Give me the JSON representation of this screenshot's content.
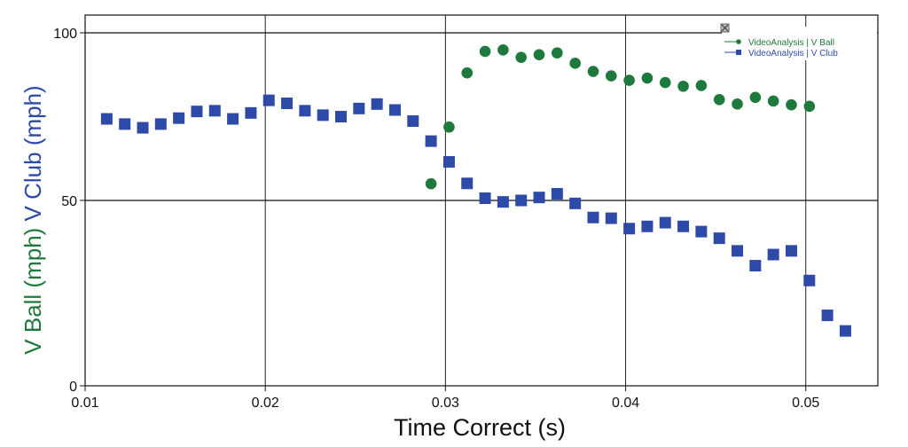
{
  "chart_data": {
    "type": "scatter",
    "xlabel": "Time Correct (s)",
    "ylabel_parts": [
      {
        "text": "V Ball (mph)",
        "color": "#1e7a3c"
      },
      {
        "text": "V Club (mph)",
        "color": "#2e4aa8"
      }
    ],
    "xlim": [
      0.01,
      0.054
    ],
    "ylim": [
      0,
      100
    ],
    "x_ticks": [
      {
        "value": 0.01,
        "label": "0.01"
      },
      {
        "value": 0.02,
        "label": "0.02"
      },
      {
        "value": 0.03,
        "label": "0.03"
      },
      {
        "value": 0.04,
        "label": "0.04"
      },
      {
        "value": 0.05,
        "label": "0.05"
      }
    ],
    "y_ticks": [
      {
        "value": 0,
        "label": "0"
      },
      {
        "value": 50,
        "label": "50"
      },
      {
        "value": 100,
        "label": "100"
      }
    ],
    "grid": true,
    "legend": {
      "placement": "top-right",
      "entries": [
        {
          "label": "VideoAnalysis | V Ball",
          "color": "#1e7a3c",
          "marker": "circle"
        },
        {
          "label": "VideoAnalysis | V Club",
          "color": "#2e4aa8",
          "marker": "square"
        }
      ]
    },
    "series": [
      {
        "name": "VideoAnalysis | V Ball",
        "color": "#1e7a3c",
        "marker": "circle",
        "points": [
          [
            0.0292,
            54.5
          ],
          [
            0.0302,
            69.8
          ],
          [
            0.0312,
            84.4
          ],
          [
            0.0322,
            90.2
          ],
          [
            0.0332,
            90.6
          ],
          [
            0.0342,
            88.6
          ],
          [
            0.0352,
            89.3
          ],
          [
            0.0362,
            89.8
          ],
          [
            0.0372,
            87.0
          ],
          [
            0.0382,
            84.8
          ],
          [
            0.0392,
            83.6
          ],
          [
            0.0402,
            82.4
          ],
          [
            0.0412,
            83.0
          ],
          [
            0.0422,
            81.8
          ],
          [
            0.0432,
            80.8
          ],
          [
            0.0442,
            81.0
          ],
          [
            0.0452,
            77.2
          ],
          [
            0.0462,
            76.0
          ],
          [
            0.0472,
            77.8
          ],
          [
            0.0482,
            76.8
          ],
          [
            0.0492,
            75.8
          ],
          [
            0.0502,
            75.4
          ]
        ]
      },
      {
        "name": "VideoAnalysis | V Club",
        "color": "#2e4aa8",
        "marker": "square",
        "points": [
          [
            0.0112,
            72.0
          ],
          [
            0.0122,
            70.6
          ],
          [
            0.0132,
            69.6
          ],
          [
            0.0142,
            70.6
          ],
          [
            0.0152,
            72.2
          ],
          [
            0.0162,
            74.0
          ],
          [
            0.0172,
            74.2
          ],
          [
            0.0182,
            72.0
          ],
          [
            0.0192,
            73.6
          ],
          [
            0.0202,
            77.0
          ],
          [
            0.0212,
            76.2
          ],
          [
            0.0222,
            74.2
          ],
          [
            0.0232,
            73.0
          ],
          [
            0.0242,
            72.6
          ],
          [
            0.0252,
            74.8
          ],
          [
            0.0262,
            76.0
          ],
          [
            0.0272,
            74.4
          ],
          [
            0.0282,
            71.4
          ],
          [
            0.0292,
            66.0
          ],
          [
            0.0302,
            60.4
          ],
          [
            0.0312,
            54.6
          ],
          [
            0.0322,
            50.6
          ],
          [
            0.0332,
            49.6
          ],
          [
            0.0342,
            50.0
          ],
          [
            0.0352,
            50.8
          ],
          [
            0.0362,
            51.8
          ],
          [
            0.0372,
            49.2
          ],
          [
            0.0382,
            45.4
          ],
          [
            0.0392,
            45.2
          ],
          [
            0.0402,
            42.4
          ],
          [
            0.0412,
            43.0
          ],
          [
            0.0422,
            44.0
          ],
          [
            0.0432,
            43.0
          ],
          [
            0.0442,
            41.6
          ],
          [
            0.0452,
            39.8
          ],
          [
            0.0462,
            36.4
          ],
          [
            0.0472,
            32.4
          ],
          [
            0.0482,
            35.4
          ],
          [
            0.0492,
            36.4
          ],
          [
            0.0502,
            28.4
          ],
          [
            0.0512,
            19.0
          ],
          [
            0.0522,
            14.8
          ]
        ]
      }
    ]
  }
}
